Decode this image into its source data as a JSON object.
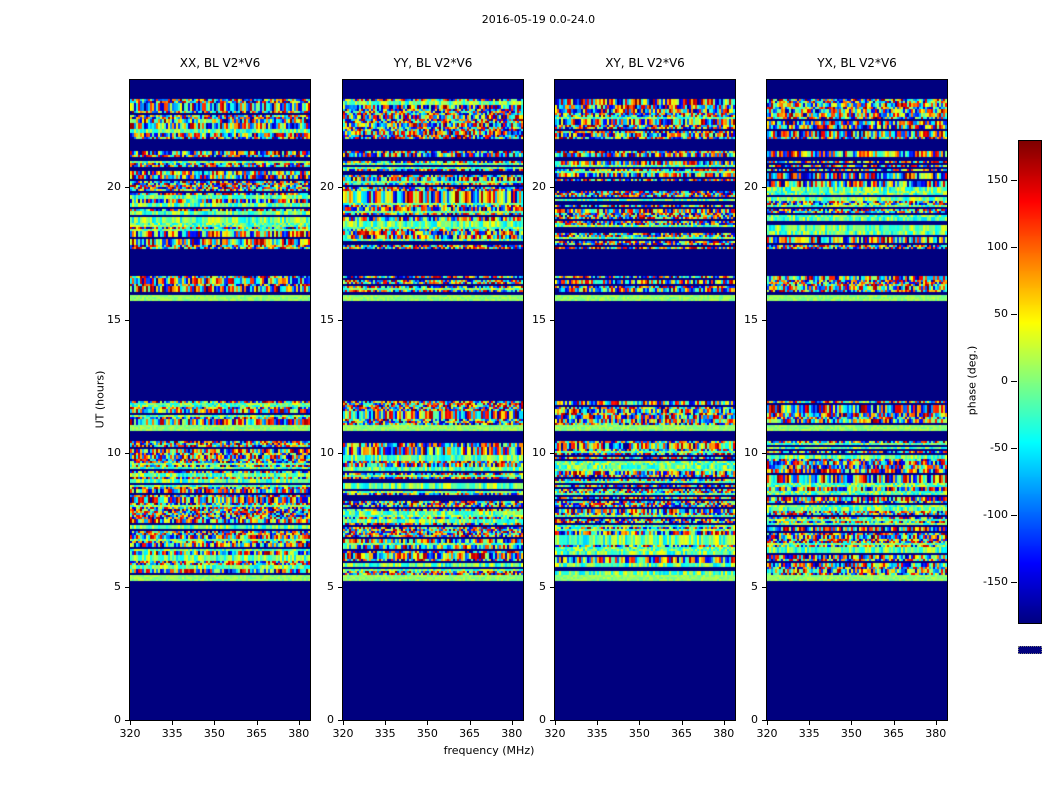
{
  "chart_data": {
    "type": "heatmap",
    "title": "2016-05-19 0.0-24.0",
    "panels": [
      {
        "title": "XX, BL V2*V6"
      },
      {
        "title": "YY, BL V2*V6"
      },
      {
        "title": "XY, BL V2*V6"
      },
      {
        "title": "YX, BL V2*V6"
      }
    ],
    "x_axis": {
      "label": "frequency (MHz)",
      "ticks": [
        320,
        335,
        350,
        365,
        380
      ],
      "range": [
        320,
        384
      ]
    },
    "y_axis": {
      "label": "UT (hours)",
      "ticks": [
        0,
        5,
        10,
        15,
        20
      ],
      "range": [
        0,
        24
      ]
    },
    "colorbar": {
      "label": "phase (deg.)",
      "ticks": [
        150,
        100,
        50,
        0,
        -50,
        -100,
        -150
      ],
      "range": [
        -180,
        180
      ],
      "colormap": "jet",
      "no_data_color": "#00007f"
    },
    "time_bands": [
      {
        "from": 0.0,
        "to": 5.2,
        "pattern": "blank"
      },
      {
        "from": 5.2,
        "to": 5.45,
        "pattern": "green-line"
      },
      {
        "from": 5.45,
        "to": 10.45,
        "pattern": "striped-noise"
      },
      {
        "from": 10.45,
        "to": 10.85,
        "pattern": "blank"
      },
      {
        "from": 10.85,
        "to": 11.05,
        "pattern": "green-line"
      },
      {
        "from": 11.05,
        "to": 11.95,
        "pattern": "noise"
      },
      {
        "from": 11.95,
        "to": 15.7,
        "pattern": "blank"
      },
      {
        "from": 15.7,
        "to": 15.95,
        "pattern": "green-line"
      },
      {
        "from": 15.95,
        "to": 16.1,
        "pattern": "blank"
      },
      {
        "from": 16.1,
        "to": 16.65,
        "pattern": "noise"
      },
      {
        "from": 16.65,
        "to": 17.7,
        "pattern": "blank"
      },
      {
        "from": 17.7,
        "to": 20.95,
        "pattern": "striped-noise"
      },
      {
        "from": 20.95,
        "to": 21.1,
        "pattern": "blank"
      },
      {
        "from": 21.1,
        "to": 21.35,
        "pattern": "noise"
      },
      {
        "from": 21.35,
        "to": 21.8,
        "pattern": "blank"
      },
      {
        "from": 21.8,
        "to": 23.3,
        "pattern": "noise"
      },
      {
        "from": 23.3,
        "to": 24.0,
        "pattern": "blank"
      }
    ]
  }
}
